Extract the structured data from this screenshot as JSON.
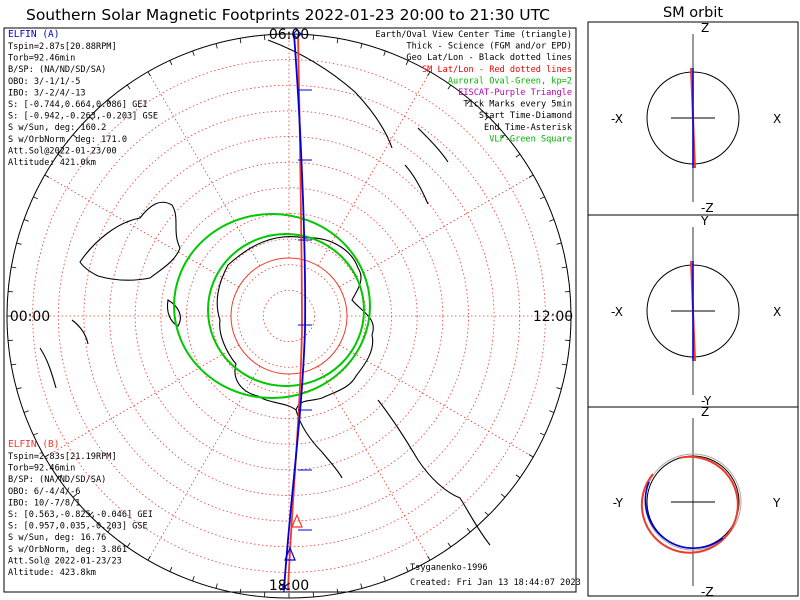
{
  "title": "Southern Solar Magnetic Footprints 2022-01-23 20:00 to 21:30 UTC",
  "orbit_title": "SM orbit",
  "colors": {
    "elfin_a": "#0000dd",
    "elfin_b": "#ee3a2a",
    "oval": "#00c800",
    "grid": "#ee3a2a",
    "coast": "#000000"
  },
  "clock_labels": {
    "top": "06:00",
    "left": "00:00",
    "right": "12:00",
    "bottom": "18:00"
  },
  "elfin_a": {
    "name": "ELFIN (A)",
    "lines": [
      "Tspin=2.87s[20.88RPM]",
      "Torb=92.46min",
      "B/SP: (NA/ND/SD/SA)",
      "OBO: 3/-1/1/-5",
      "IBO: 3/-2/4/-13",
      "S: [-0.744,0.664,0.086] GEI",
      "S: [-0.942,-0.263,-0.203] GSE",
      "S w/Sun, deg: 160.2",
      "S w/OrbNorm, deg: 171.0",
      "Att.Sol@2022-01-23/00",
      "Altitude: 421.0km"
    ]
  },
  "elfin_b": {
    "name": "ELFIN (B)",
    "lines": [
      "Tspin=2.83s[21.19RPM]",
      "Torb=92.46min",
      "B/SP: (NA/ND/SD/SA)",
      "OBO: 6/-4/4/-6",
      "IBO: 10/-7/8/1",
      "S: [0.563,-0.825,-0.046] GEI",
      "S: [0.957,0.035,-0.203] GSE",
      "S w/Sun, deg: 16.76",
      "S w/OrbNorm, deg: 3.861",
      "Att.Sol@ 2022-01-23/23",
      "Altitude: 423.8km"
    ]
  },
  "legend": [
    {
      "text": "Earth/Oval View Center Time (triangle)",
      "color": "#000000"
    },
    {
      "text": "Thick - Science (FGM and/or EPD)",
      "color": "#000000"
    },
    {
      "text": "Geo Lat/Lon - Black dotted lines",
      "color": "#000000"
    },
    {
      "text": "SM Lat/Lon - Red dotted lines",
      "color": "#ee0000"
    },
    {
      "text": "Auroral Oval-Green, kp=2",
      "color": "#00b400"
    },
    {
      "text": "EISCAT-Purple Triangle",
      "color": "#b400b4"
    },
    {
      "text": "Tick Marks every 5min",
      "color": "#000000"
    },
    {
      "text": "Start Time-Diamond",
      "color": "#000000"
    },
    {
      "text": "End Time-Asterisk",
      "color": "#000000"
    },
    {
      "text": "VLF-Green Square",
      "color": "#00b400"
    }
  ],
  "credit": {
    "model": "Tsyganenko-1996",
    "created": "Created: Fri Jan 13 18:44:07 2023"
  },
  "orbit_panels": [
    {
      "top": "Z",
      "bottom": "-Z",
      "left": "-X",
      "right": "X"
    },
    {
      "top": "Y",
      "bottom": "-Y",
      "left": "-X",
      "right": "X"
    },
    {
      "top": "Z",
      "bottom": "-Z",
      "left": "-Y",
      "right": "Y"
    }
  ],
  "chart_data": {
    "type": "polar-map",
    "projection": "southern hemisphere, SM magnetic local time at rim",
    "mlt_rim_labels": [
      "06:00",
      "00:00",
      "12:00",
      "18:00"
    ],
    "auroral_oval_kp": 2,
    "series": [
      {
        "name": "ELFIN (A)",
        "color": "#0000dd"
      },
      {
        "name": "ELFIN (B)",
        "color": "#ee3a2a"
      }
    ]
  }
}
